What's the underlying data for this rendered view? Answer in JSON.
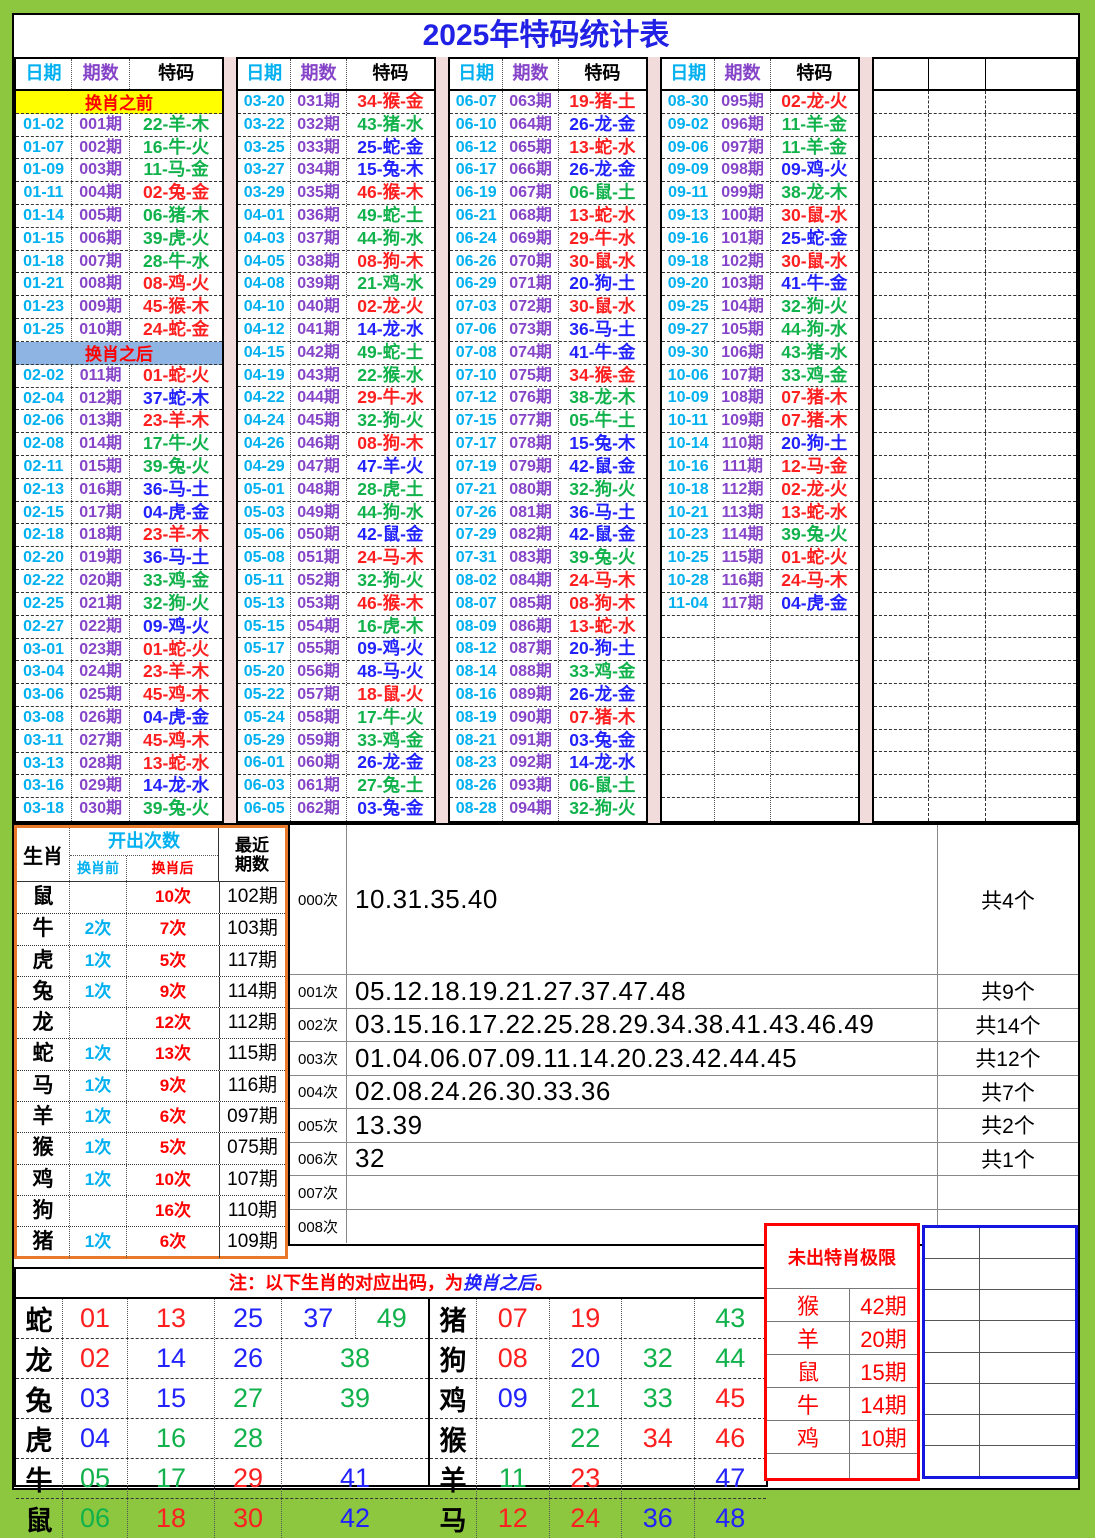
{
  "page": {
    "title": "2025年特码统计表"
  },
  "colors": {
    "page_green": "#8DC63F",
    "pink_separator": "#F2DCDB",
    "title_blue": "#2121E5",
    "date_cyan": "#00B0F0",
    "period_purple": "#8645C8",
    "code_red": "#FE2020",
    "code_green": "#11B24B",
    "code_blue": "#2222FE",
    "before_bg_yellow": "#FFFF00",
    "after_bg_blue": "#8DB4E2",
    "stats_border_orange": "#E8782A",
    "limit_box_red": "#FF0000",
    "empty_box_blue": "#1515E0"
  },
  "top_table": {
    "headers": {
      "date": "日期",
      "period": "期数",
      "code": "特码"
    },
    "section_before": "换肖之前",
    "section_after": "换肖之后",
    "groups": [
      {
        "rows": [
          [
            "@before"
          ],
          [
            "01-02",
            "001期",
            "22-羊-木",
            "g"
          ],
          [
            "01-07",
            "002期",
            "16-牛-火",
            "g"
          ],
          [
            "01-09",
            "003期",
            "11-马-金",
            "g"
          ],
          [
            "01-11",
            "004期",
            "02-兔-金",
            "r"
          ],
          [
            "01-14",
            "005期",
            "06-猪-木",
            "g"
          ],
          [
            "01-15",
            "006期",
            "39-虎-火",
            "g"
          ],
          [
            "01-18",
            "007期",
            "28-牛-水",
            "g"
          ],
          [
            "01-21",
            "008期",
            "08-鸡-火",
            "r"
          ],
          [
            "01-23",
            "009期",
            "45-猴-木",
            "r"
          ],
          [
            "01-25",
            "010期",
            "24-蛇-金",
            "r"
          ],
          [
            "@after"
          ],
          [
            "02-02",
            "011期",
            "01-蛇-火",
            "r"
          ],
          [
            "02-04",
            "012期",
            "37-蛇-木",
            "b"
          ],
          [
            "02-06",
            "013期",
            "23-羊-木",
            "r"
          ],
          [
            "02-08",
            "014期",
            "17-牛-火",
            "g"
          ],
          [
            "02-11",
            "015期",
            "39-兔-火",
            "g"
          ],
          [
            "02-13",
            "016期",
            "36-马-土",
            "b"
          ],
          [
            "02-15",
            "017期",
            "04-虎-金",
            "b"
          ],
          [
            "02-18",
            "018期",
            "23-羊-木",
            "r"
          ],
          [
            "02-20",
            "019期",
            "36-马-土",
            "b"
          ],
          [
            "02-22",
            "020期",
            "33-鸡-金",
            "g"
          ],
          [
            "02-25",
            "021期",
            "32-狗-火",
            "g"
          ],
          [
            "02-27",
            "022期",
            "09-鸡-火",
            "b"
          ],
          [
            "03-01",
            "023期",
            "01-蛇-火",
            "r"
          ],
          [
            "03-04",
            "024期",
            "23-羊-木",
            "r"
          ],
          [
            "03-06",
            "025期",
            "45-鸡-木",
            "r"
          ],
          [
            "03-08",
            "026期",
            "04-虎-金",
            "b"
          ],
          [
            "03-11",
            "027期",
            "45-鸡-木",
            "r"
          ],
          [
            "03-13",
            "028期",
            "13-蛇-水",
            "r"
          ],
          [
            "03-16",
            "029期",
            "14-龙-水",
            "b"
          ],
          [
            "03-18",
            "030期",
            "39-兔-火",
            "g"
          ]
        ]
      },
      {
        "rows": [
          [
            "03-20",
            "031期",
            "34-猴-金",
            "r"
          ],
          [
            "03-22",
            "032期",
            "43-猪-水",
            "g"
          ],
          [
            "03-25",
            "033期",
            "25-蛇-金",
            "b"
          ],
          [
            "03-27",
            "034期",
            "15-兔-木",
            "b"
          ],
          [
            "03-29",
            "035期",
            "46-猴-木",
            "r"
          ],
          [
            "04-01",
            "036期",
            "49-蛇-土",
            "g"
          ],
          [
            "04-03",
            "037期",
            "44-狗-水",
            "g"
          ],
          [
            "04-05",
            "038期",
            "08-狗-木",
            "r"
          ],
          [
            "04-08",
            "039期",
            "21-鸡-水",
            "g"
          ],
          [
            "04-10",
            "040期",
            "02-龙-火",
            "r"
          ],
          [
            "04-12",
            "041期",
            "14-龙-水",
            "b"
          ],
          [
            "04-15",
            "042期",
            "49-蛇-土",
            "g"
          ],
          [
            "04-19",
            "043期",
            "22-猴-水",
            "g"
          ],
          [
            "04-22",
            "044期",
            "29-牛-水",
            "r"
          ],
          [
            "04-24",
            "045期",
            "32-狗-火",
            "g"
          ],
          [
            "04-26",
            "046期",
            "08-狗-木",
            "r"
          ],
          [
            "04-29",
            "047期",
            "47-羊-火",
            "b"
          ],
          [
            "05-01",
            "048期",
            "28-虎-土",
            "g"
          ],
          [
            "05-03",
            "049期",
            "44-狗-水",
            "g"
          ],
          [
            "05-06",
            "050期",
            "42-鼠-金",
            "b"
          ],
          [
            "05-08",
            "051期",
            "24-马-木",
            "r"
          ],
          [
            "05-11",
            "052期",
            "32-狗-火",
            "g"
          ],
          [
            "05-13",
            "053期",
            "46-猴-木",
            "r"
          ],
          [
            "05-15",
            "054期",
            "16-虎-木",
            "g"
          ],
          [
            "05-17",
            "055期",
            "09-鸡-火",
            "b"
          ],
          [
            "05-20",
            "056期",
            "48-马-火",
            "b"
          ],
          [
            "05-22",
            "057期",
            "18-鼠-火",
            "r"
          ],
          [
            "05-24",
            "058期",
            "17-牛-火",
            "g"
          ],
          [
            "05-29",
            "059期",
            "33-鸡-金",
            "g"
          ],
          [
            "06-01",
            "060期",
            "26-龙-金",
            "b"
          ],
          [
            "06-03",
            "061期",
            "27-兔-土",
            "g"
          ],
          [
            "06-05",
            "062期",
            "03-兔-金",
            "b"
          ]
        ]
      },
      {
        "rows": [
          [
            "06-07",
            "063期",
            "19-猪-土",
            "r"
          ],
          [
            "06-10",
            "064期",
            "26-龙-金",
            "b"
          ],
          [
            "06-12",
            "065期",
            "13-蛇-水",
            "r"
          ],
          [
            "06-17",
            "066期",
            "26-龙-金",
            "b"
          ],
          [
            "06-19",
            "067期",
            "06-鼠-土",
            "g"
          ],
          [
            "06-21",
            "068期",
            "13-蛇-水",
            "r"
          ],
          [
            "06-24",
            "069期",
            "29-牛-水",
            "r"
          ],
          [
            "06-26",
            "070期",
            "30-鼠-水",
            "r"
          ],
          [
            "06-29",
            "071期",
            "20-狗-土",
            "b"
          ],
          [
            "07-03",
            "072期",
            "30-鼠-水",
            "r"
          ],
          [
            "07-06",
            "073期",
            "36-马-土",
            "b"
          ],
          [
            "07-08",
            "074期",
            "41-牛-金",
            "b"
          ],
          [
            "07-10",
            "075期",
            "34-猴-金",
            "r"
          ],
          [
            "07-12",
            "076期",
            "38-龙-木",
            "g"
          ],
          [
            "07-15",
            "077期",
            "05-牛-土",
            "g"
          ],
          [
            "07-17",
            "078期",
            "15-兔-木",
            "b"
          ],
          [
            "07-19",
            "079期",
            "42-鼠-金",
            "b"
          ],
          [
            "07-21",
            "080期",
            "32-狗-火",
            "g"
          ],
          [
            "07-26",
            "081期",
            "36-马-土",
            "b"
          ],
          [
            "07-29",
            "082期",
            "42-鼠-金",
            "b"
          ],
          [
            "07-31",
            "083期",
            "39-兔-火",
            "g"
          ],
          [
            "08-02",
            "084期",
            "24-马-木",
            "r"
          ],
          [
            "08-07",
            "085期",
            "08-狗-木",
            "r"
          ],
          [
            "08-09",
            "086期",
            "13-蛇-水",
            "r"
          ],
          [
            "08-12",
            "087期",
            "20-狗-土",
            "b"
          ],
          [
            "08-14",
            "088期",
            "33-鸡-金",
            "g"
          ],
          [
            "08-16",
            "089期",
            "26-龙-金",
            "b"
          ],
          [
            "08-19",
            "090期",
            "07-猪-木",
            "r"
          ],
          [
            "08-21",
            "091期",
            "03-兔-金",
            "b"
          ],
          [
            "08-23",
            "092期",
            "14-龙-水",
            "b"
          ],
          [
            "08-26",
            "093期",
            "06-鼠-土",
            "g"
          ],
          [
            "08-28",
            "094期",
            "32-狗-火",
            "g"
          ]
        ]
      },
      {
        "rows": [
          [
            "08-30",
            "095期",
            "02-龙-火",
            "r"
          ],
          [
            "09-02",
            "096期",
            "11-羊-金",
            "g"
          ],
          [
            "09-06",
            "097期",
            "11-羊-金",
            "g"
          ],
          [
            "09-09",
            "098期",
            "09-鸡-火",
            "b"
          ],
          [
            "09-11",
            "099期",
            "38-龙-木",
            "g"
          ],
          [
            "09-13",
            "100期",
            "30-鼠-水",
            "r"
          ],
          [
            "09-16",
            "101期",
            "25-蛇-金",
            "b"
          ],
          [
            "09-18",
            "102期",
            "30-鼠-水",
            "r"
          ],
          [
            "09-20",
            "103期",
            "41-牛-金",
            "b"
          ],
          [
            "09-25",
            "104期",
            "32-狗-火",
            "g"
          ],
          [
            "09-27",
            "105期",
            "44-狗-水",
            "g"
          ],
          [
            "09-30",
            "106期",
            "43-猪-水",
            "g"
          ],
          [
            "10-06",
            "107期",
            "33-鸡-金",
            "g"
          ],
          [
            "10-09",
            "108期",
            "07-猪-木",
            "r"
          ],
          [
            "10-11",
            "109期",
            "07-猪-木",
            "r"
          ],
          [
            "10-14",
            "110期",
            "20-狗-土",
            "b"
          ],
          [
            "10-16",
            "111期",
            "12-马-金",
            "r"
          ],
          [
            "10-18",
            "112期",
            "02-龙-火",
            "r"
          ],
          [
            "10-21",
            "113期",
            "13-蛇-水",
            "r"
          ],
          [
            "10-23",
            "114期",
            "39-兔-火",
            "g"
          ],
          [
            "10-25",
            "115期",
            "01-蛇-火",
            "r"
          ],
          [
            "10-28",
            "116期",
            "24-马-木",
            "r"
          ],
          [
            "11-04",
            "117期",
            "04-虎-金",
            "b"
          ],
          [
            "",
            "",
            "",
            ""
          ],
          [
            "",
            "",
            "",
            ""
          ],
          [
            "",
            "",
            "",
            ""
          ],
          [
            "",
            "",
            "",
            ""
          ],
          [
            "",
            "",
            "",
            ""
          ],
          [
            "",
            "",
            "",
            ""
          ],
          [
            "",
            "",
            "",
            ""
          ],
          [
            "",
            "",
            "",
            ""
          ],
          [
            "",
            "",
            "",
            ""
          ]
        ]
      }
    ]
  },
  "zodiac_stats": {
    "headers": {
      "zodiac": "生肖",
      "freq": "开出次数",
      "before": "换肖前",
      "after": "换肖后",
      "recent_l1": "最近",
      "recent_l2": "期数"
    },
    "rows": [
      [
        "鼠",
        "",
        "10次",
        "102期"
      ],
      [
        "牛",
        "2次",
        "7次",
        "103期"
      ],
      [
        "虎",
        "1次",
        "5次",
        "117期"
      ],
      [
        "兔",
        "1次",
        "9次",
        "114期"
      ],
      [
        "龙",
        "",
        "12次",
        "112期"
      ],
      [
        "蛇",
        "1次",
        "13次",
        "115期"
      ],
      [
        "马",
        "1次",
        "9次",
        "116期"
      ],
      [
        "羊",
        "1次",
        "6次",
        "097期"
      ],
      [
        "猴",
        "1次",
        "5次",
        "075期"
      ],
      [
        "鸡",
        "1次",
        "10次",
        "107期"
      ],
      [
        "狗",
        "",
        "16次",
        "110期"
      ],
      [
        "猪",
        "1次",
        "6次",
        "109期"
      ]
    ]
  },
  "frequency": {
    "rows": [
      [
        "000次",
        "10.31.35.40",
        "共4个"
      ],
      [
        "001次",
        "05.12.18.19.21.27.37.47.48",
        "共9个"
      ],
      [
        "002次",
        "03.15.16.17.22.25.28.29.34.38.41.43.46.49",
        "共14个"
      ],
      [
        "003次",
        "01.04.06.07.09.11.14.20.23.42.44.45",
        "共12个"
      ],
      [
        "004次",
        "02.08.24.26.30.33.36",
        "共7个"
      ],
      [
        "005次",
        "13.39",
        "共2个"
      ],
      [
        "006次",
        "32",
        "共1个"
      ],
      [
        "007次",
        "",
        ""
      ],
      [
        "008次",
        "",
        ""
      ]
    ]
  },
  "note": {
    "prefix": "注：以下生肖的对应出码，为",
    "highlight": "换肖之后",
    "suffix": "。"
  },
  "zodiac_numbers": {
    "left": [
      {
        "z": "蛇",
        "c": [
          [
            "01",
            "r"
          ],
          [
            "13",
            "r"
          ],
          [
            "25",
            "b"
          ]
        ],
        "w": [
          [
            "37",
            "b"
          ],
          [
            "49",
            "g"
          ]
        ]
      },
      {
        "z": "龙",
        "c": [
          [
            "02",
            "r"
          ],
          [
            "14",
            "b"
          ],
          [
            "26",
            "b"
          ]
        ],
        "w": [
          [
            "38",
            "g"
          ]
        ]
      },
      {
        "z": "兔",
        "c": [
          [
            "03",
            "b"
          ],
          [
            "15",
            "b"
          ],
          [
            "27",
            "g"
          ]
        ],
        "w": [
          [
            "39",
            "g"
          ]
        ]
      },
      {
        "z": "虎",
        "c": [
          [
            "04",
            "b"
          ],
          [
            "16",
            "g"
          ],
          [
            "28",
            "g"
          ]
        ],
        "w": []
      },
      {
        "z": "牛",
        "c": [
          [
            "05",
            "g"
          ],
          [
            "17",
            "g"
          ],
          [
            "29",
            "r"
          ]
        ],
        "w": [
          [
            "41",
            "b"
          ]
        ]
      },
      {
        "z": "鼠",
        "c": [
          [
            "06",
            "g"
          ],
          [
            "18",
            "r"
          ],
          [
            "30",
            "r"
          ]
        ],
        "w": [
          [
            "42",
            "b"
          ]
        ]
      }
    ],
    "right": [
      {
        "z": "猪",
        "c": [
          [
            "07",
            "r"
          ],
          [
            "19",
            "r"
          ],
          [
            "",
            ""
          ],
          [
            "43",
            "g"
          ]
        ]
      },
      {
        "z": "狗",
        "c": [
          [
            "08",
            "r"
          ],
          [
            "20",
            "b"
          ],
          [
            "32",
            "g"
          ],
          [
            "44",
            "g"
          ]
        ]
      },
      {
        "z": "鸡",
        "c": [
          [
            "09",
            "b"
          ],
          [
            "21",
            "g"
          ],
          [
            "33",
            "g"
          ],
          [
            "45",
            "r"
          ]
        ]
      },
      {
        "z": "猴",
        "c": [
          [
            "",
            ""
          ],
          [
            "22",
            "g"
          ],
          [
            "34",
            "r"
          ],
          [
            "46",
            "r"
          ]
        ]
      },
      {
        "z": "羊",
        "c": [
          [
            "11",
            "g"
          ],
          [
            "23",
            "r"
          ],
          [
            "",
            ""
          ],
          [
            "47",
            "b"
          ]
        ]
      },
      {
        "z": "马",
        "c": [
          [
            "12",
            "r"
          ],
          [
            "24",
            "r"
          ],
          [
            "36",
            "b"
          ],
          [
            "48",
            "b"
          ]
        ]
      }
    ]
  },
  "limit_box": {
    "title": "未出特肖极限",
    "rows": [
      [
        "猴",
        "42期"
      ],
      [
        "羊",
        "20期"
      ],
      [
        "鼠",
        "15期"
      ],
      [
        "牛",
        "14期"
      ],
      [
        "鸡",
        "10期"
      ],
      [
        "",
        ""
      ]
    ]
  }
}
